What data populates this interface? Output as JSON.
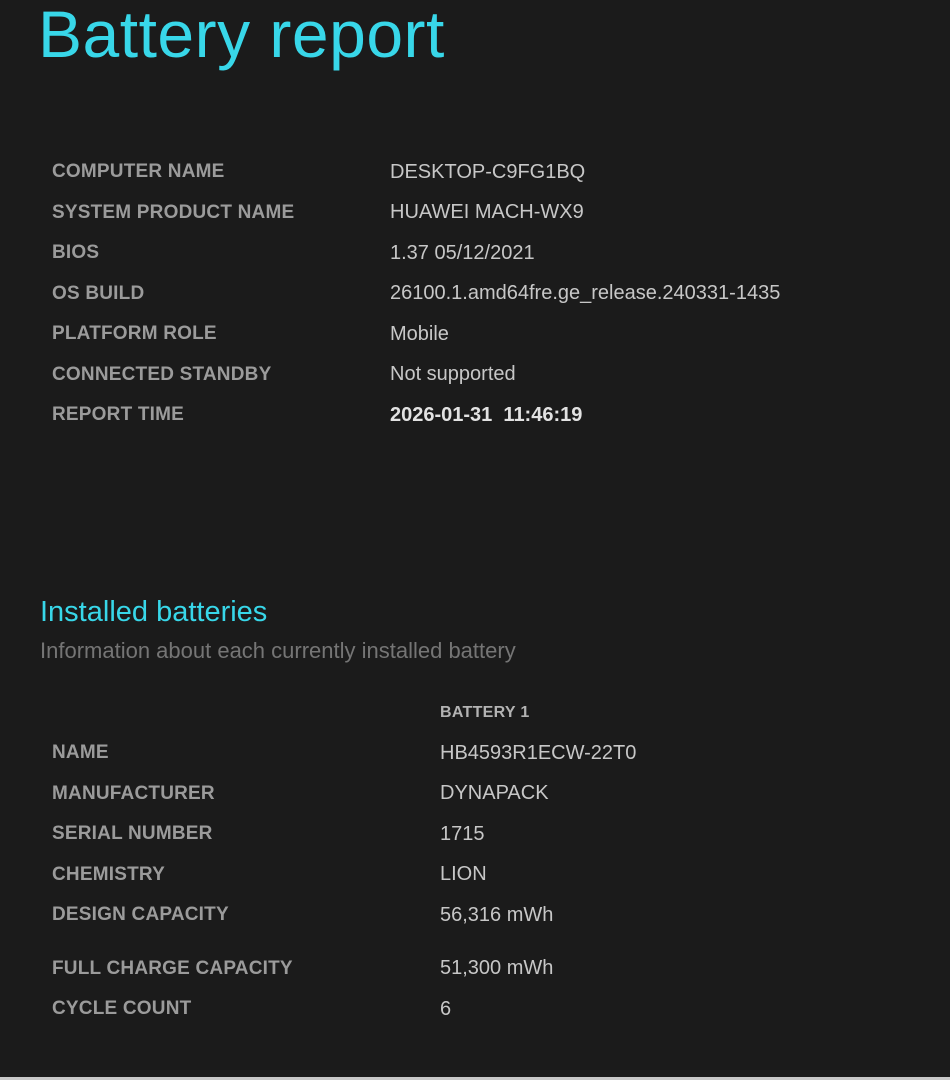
{
  "page": {
    "title": "Battery report"
  },
  "colors": {
    "background": "#1b1b1b",
    "accent_cyan": "#38d7e9",
    "label_gray": "#9b9b9b",
    "value_gray": "#c7c7c7",
    "subtitle_gray": "#757575"
  },
  "system_info": {
    "rows": [
      {
        "label": "COMPUTER NAME",
        "value": "DESKTOP-C9FG1BQ"
      },
      {
        "label": "SYSTEM PRODUCT NAME",
        "value": "HUAWEI MACH-WX9"
      },
      {
        "label": "BIOS",
        "value": "1.37 05/12/2021"
      },
      {
        "label": "OS BUILD",
        "value": "26100.1.amd64fre.ge_release.240331-1435"
      },
      {
        "label": "PLATFORM ROLE",
        "value": "Mobile"
      },
      {
        "label": "CONNECTED STANDBY",
        "value": "Not supported"
      },
      {
        "label": "REPORT TIME",
        "value": "2026-01-31  11:46:19"
      }
    ]
  },
  "installed_batteries": {
    "heading": "Installed batteries",
    "subtitle": "Information about each currently installed battery",
    "column_header": "BATTERY 1",
    "rows": [
      {
        "label": "NAME",
        "value": "HB4593R1ECW-22T0"
      },
      {
        "label": "MANUFACTURER",
        "value": "DYNAPACK"
      },
      {
        "label": "SERIAL NUMBER",
        "value": "1715"
      },
      {
        "label": "CHEMISTRY",
        "value": "LION"
      },
      {
        "label": "DESIGN CAPACITY",
        "value": "56,316 mWh"
      },
      {
        "label": "FULL CHARGE CAPACITY",
        "value": "51,300 mWh"
      },
      {
        "label": "CYCLE COUNT",
        "value": "6"
      }
    ]
  }
}
